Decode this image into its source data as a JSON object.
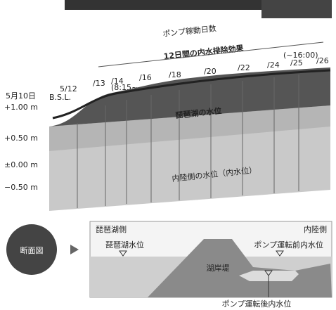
{
  "header": {
    "title": "ポンプ稼動日数",
    "subtitle": "12日間の内水排除効果"
  },
  "dates": [
    "5月10日",
    "5/12",
    "/13",
    "/14",
    "/16",
    "/18",
    "/20",
    "/22",
    "/24",
    "/25",
    "/26"
  ],
  "date_notes": {
    "start": "(8:15~",
    "end": "(~16:00)"
  },
  "levels": {
    "unit": "B.S.L.",
    "labels": [
      "+1.00 m",
      "+0.50 m",
      "±0.00 m",
      "−0.50 m"
    ]
  },
  "block_labels": {
    "lake": "琵琶湖の水位",
    "inland": "内陸側の水位（内水位）"
  },
  "section": {
    "badge": "断面図",
    "left": "琵琶湖側",
    "right": "内陸側",
    "lake_level": "琵琶湖水位",
    "before": "ポンプ運転前内水位",
    "dike": "湖岸堤",
    "after": "ポンプ運転後内水位"
  }
}
